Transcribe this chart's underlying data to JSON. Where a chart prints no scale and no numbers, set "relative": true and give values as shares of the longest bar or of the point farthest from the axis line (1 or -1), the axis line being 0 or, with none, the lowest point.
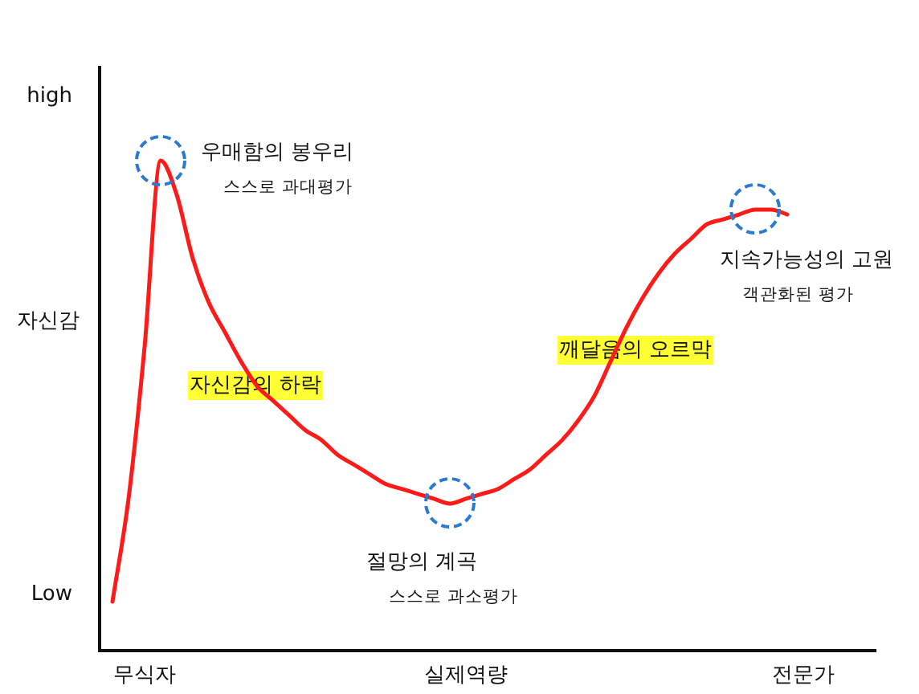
{
  "chart_data": {
    "type": "line",
    "relative": true,
    "ylabel": "자신감",
    "categories": [
      null,
      null,
      "무식자",
      null,
      null,
      null,
      null,
      null,
      null,
      null,
      null,
      null,
      null,
      null,
      null,
      null,
      null,
      null,
      null,
      null,
      null,
      null,
      "실제역량",
      null,
      null,
      null,
      null,
      null,
      null,
      null,
      null,
      null,
      null,
      null,
      null,
      null,
      null,
      null,
      null,
      null,
      null,
      null,
      null,
      "전문가",
      null
    ],
    "series": [
      {
        "color": "#ff1a1a",
        "values": [
          0.1,
          0.31,
          0.62,
          1,
          0.93,
          0.8,
          0.71,
          0.65,
          0.59,
          0.54,
          0.51,
          0.48,
          0.45,
          0.43,
          0.4,
          0.38,
          0.36,
          0.34,
          0.33,
          0.32,
          0.31,
          0.3,
          0.31,
          0.32,
          0.33,
          0.35,
          0.37,
          0.4,
          0.43,
          0.47,
          0.52,
          0.59,
          0.66,
          0.72,
          0.77,
          0.81,
          0.84,
          0.87,
          0.88,
          0.89,
          0.9,
          0.9,
          0.89,
          null,
          null
        ]
      }
    ],
    "annotations": [
      "우매함의 봉우리\n스스로 과대평가",
      "자신감의 하락",
      "절망의 계곡\n스스로 과소평가",
      "깨달음의 오르막",
      "지속가능성의 고원\n객관화된 평가",
      "high",
      "Low"
    ],
    "grid": false,
    "legend": false,
    "marker": "none",
    "line_style": "solid"
  }
}
